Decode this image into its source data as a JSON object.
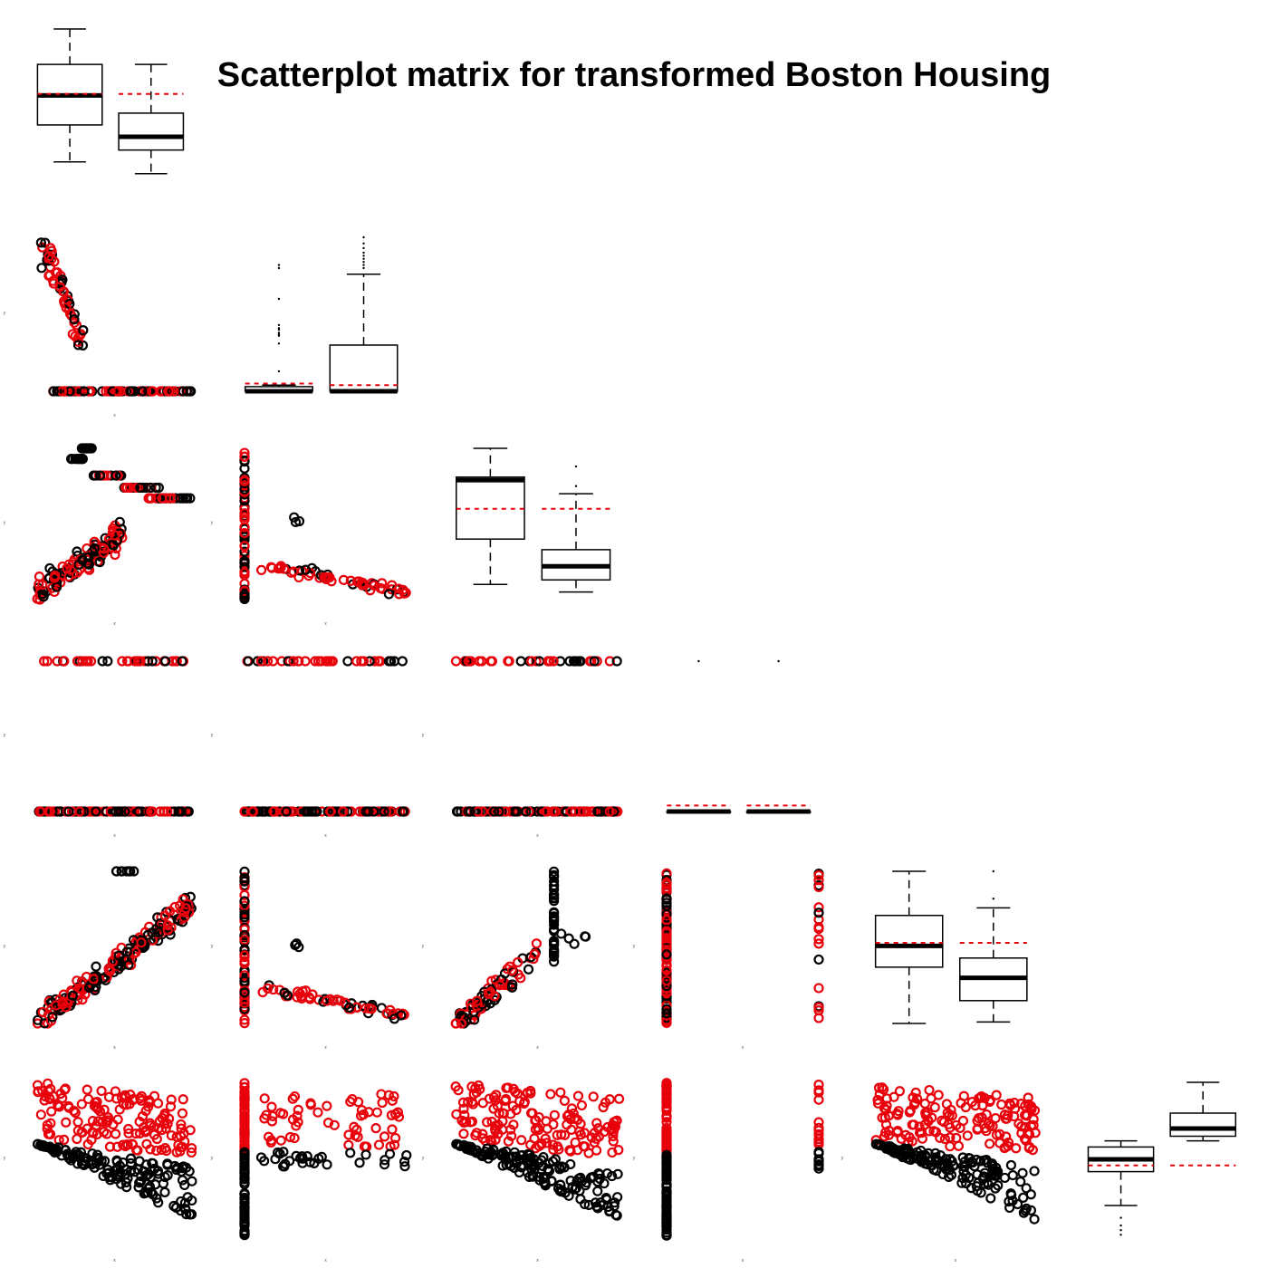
{
  "chart_data": {
    "type": "scatter",
    "title": "Scatterplot matrix for transformed Boston Housing",
    "colors": {
      "group_a": "#000000",
      "group_b": "#e8000b",
      "mean_line": "#e8000b"
    },
    "layout": "lower-triangle scatterplot matrix, boxplots on diagonal",
    "n_panels": 6,
    "axis_labels": {
      "x": "x",
      "y": "y"
    },
    "boxplots": [
      {
        "panel": 1,
        "groups": [
          {
            "min": 0.1,
            "q1": 0.35,
            "median": 0.55,
            "q3": 0.76,
            "max": 1.0,
            "mean": 0.56,
            "outliers": []
          },
          {
            "min": 0.02,
            "q1": 0.18,
            "median": 0.27,
            "q3": 0.43,
            "max": 0.76,
            "mean": 0.56,
            "outliers": []
          }
        ]
      },
      {
        "panel": 2,
        "groups": [
          {
            "min": 0.0,
            "q1": 0.0,
            "median": 0.0,
            "q3": 0.03,
            "max": 0.04,
            "mean": 0.05,
            "outliers": [
              0.13,
              0.31,
              0.36,
              0.37,
              0.38,
              0.4,
              0.41,
              0.43,
              0.6,
              0.8,
              0.82
            ]
          },
          {
            "min": 0.0,
            "q1": 0.0,
            "median": 0.0,
            "q3": 0.3,
            "max": 0.76,
            "mean": 0.04,
            "outliers": [
              0.8,
              0.82,
              0.84,
              0.86,
              0.88,
              0.9,
              0.93,
              0.96,
              1.0
            ]
          }
        ]
      },
      {
        "panel": 3,
        "groups": [
          {
            "min": 0.1,
            "q1": 0.4,
            "median": 0.79,
            "q3": 0.81,
            "max": 1.0,
            "mean": 0.6,
            "outliers": []
          },
          {
            "min": 0.05,
            "q1": 0.13,
            "median": 0.22,
            "q3": 0.33,
            "max": 0.7,
            "mean": 0.6,
            "outliers": [
              0.75,
              0.88
            ]
          }
        ]
      },
      {
        "panel": 4,
        "groups": [
          {
            "min": 0.0,
            "q1": 0.0,
            "median": 0.0,
            "q3": 0.0,
            "max": 0.0,
            "mean": 0.04,
            "outliers": [
              1.0
            ]
          },
          {
            "min": 0.0,
            "q1": 0.0,
            "median": 0.0,
            "q3": 0.0,
            "max": 0.0,
            "mean": 0.04,
            "outliers": [
              1.0
            ]
          }
        ]
      },
      {
        "panel": 5,
        "groups": [
          {
            "min": 0.0,
            "q1": 0.37,
            "median": 0.51,
            "q3": 0.71,
            "max": 1.0,
            "mean": 0.53,
            "outliers": []
          },
          {
            "min": 0.01,
            "q1": 0.15,
            "median": 0.3,
            "q3": 0.43,
            "max": 0.76,
            "mean": 0.53,
            "outliers": [
              0.82,
              1.0
            ]
          }
        ]
      },
      {
        "panel": 6,
        "groups": [
          {
            "min": 0.2,
            "q1": 0.42,
            "median": 0.5,
            "q3": 0.58,
            "max": 0.62,
            "mean": 0.46,
            "outliers": [
              0.12,
              0.07,
              0.04,
              0.01
            ]
          },
          {
            "min": 0.62,
            "q1": 0.65,
            "median": 0.7,
            "q3": 0.8,
            "max": 1.0,
            "mean": 0.46,
            "outliers": []
          }
        ]
      }
    ],
    "scatter_panels": [
      {
        "row": 2,
        "col": 1,
        "pattern": "decay_to_zero",
        "note": "high y at low x, most points at y=0"
      },
      {
        "row": 3,
        "col": 1,
        "pattern": "rising_with_upper_steps"
      },
      {
        "row": 3,
        "col": 2,
        "pattern": "negative_decay"
      },
      {
        "row": 4,
        "col": 1,
        "pattern": "binary_rows"
      },
      {
        "row": 4,
        "col": 2,
        "pattern": "binary_rows"
      },
      {
        "row": 4,
        "col": 3,
        "pattern": "binary_rows"
      },
      {
        "row": 5,
        "col": 1,
        "pattern": "positive_rising"
      },
      {
        "row": 5,
        "col": 2,
        "pattern": "negative_decay"
      },
      {
        "row": 5,
        "col": 3,
        "pattern": "positive_clusters"
      },
      {
        "row": 5,
        "col": 4,
        "pattern": "binary_columns"
      },
      {
        "row": 6,
        "col": 1,
        "pattern": "split_by_group_decreasing"
      },
      {
        "row": 6,
        "col": 2,
        "pattern": "split_by_group_columns"
      },
      {
        "row": 6,
        "col": 3,
        "pattern": "split_by_group_decreasing"
      },
      {
        "row": 6,
        "col": 4,
        "pattern": "binary_columns_split"
      },
      {
        "row": 6,
        "col": 5,
        "pattern": "split_by_group_decreasing"
      }
    ]
  }
}
